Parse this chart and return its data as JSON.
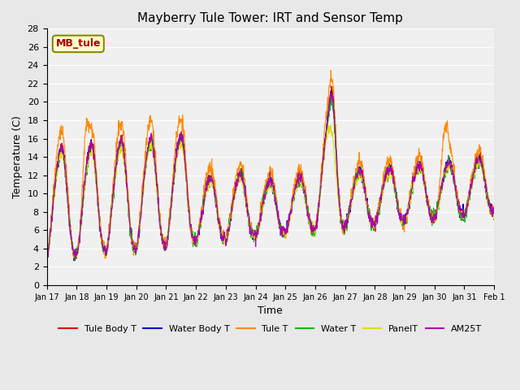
{
  "title": "Mayberry Tule Tower: IRT and Sensor Temp",
  "xlabel": "Time",
  "ylabel": "Temperature (C)",
  "annotation_text": "MB_tule",
  "ylim": [
    0,
    28
  ],
  "yticks": [
    0,
    2,
    4,
    6,
    8,
    10,
    12,
    14,
    16,
    18,
    20,
    22,
    24,
    26,
    28
  ],
  "x_tick_labels": [
    "Jan 17",
    "Jan 18",
    "Jan 19",
    "Jan 20",
    "Jan 21",
    "Jan 22",
    "Jan 23",
    "Jan 24",
    "Jan 25",
    "Jan 26",
    "Jan 27",
    "Jan 28",
    "Jan 29",
    "Jan 30",
    "Jan 31",
    "Feb 1"
  ],
  "legend_entries": [
    {
      "label": "Tule Body T",
      "color": "#dd0000"
    },
    {
      "label": "Water Body T",
      "color": "#0000cc"
    },
    {
      "label": "Tule T",
      "color": "#ff8800"
    },
    {
      "label": "Water T",
      "color": "#00bb00"
    },
    {
      "label": "PanelT",
      "color": "#dddd00"
    },
    {
      "label": "AM25T",
      "color": "#aa00aa"
    }
  ],
  "bg_color": "#e8e8e8",
  "plot_bg": "#f0f0f0",
  "n_points": 1500,
  "n_days": 15
}
